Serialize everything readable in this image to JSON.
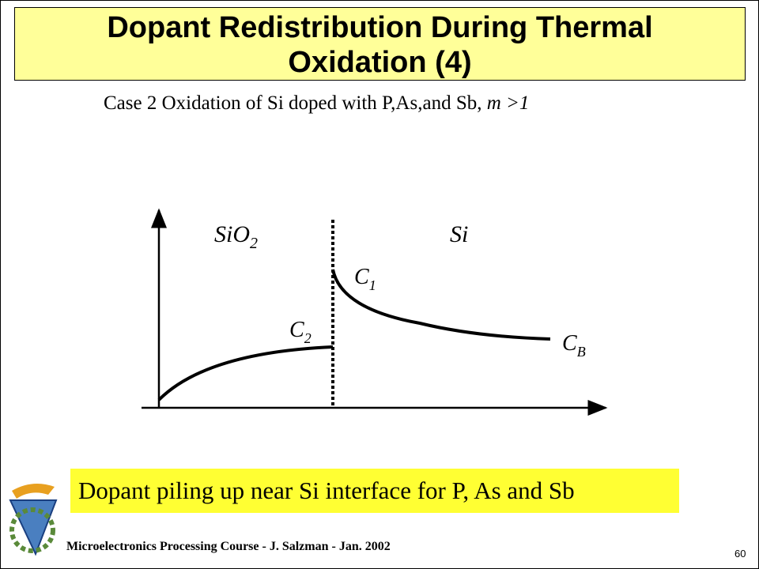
{
  "header": {
    "title_lines": [
      "Dopant Redistribution During Thermal",
      "Oxidation (4)"
    ]
  },
  "subtitle": {
    "text": "Case 2  Oxidation of Si doped with P,As,and Sb,",
    "condition": "m >1"
  },
  "diagram": {
    "regions": [
      {
        "main": "SiO",
        "sub": "2"
      },
      {
        "main": "Si"
      }
    ],
    "labels": [
      {
        "main": "C",
        "sub": "1"
      },
      {
        "main": "C",
        "sub": "2"
      },
      {
        "main": "C",
        "sub": "B"
      }
    ]
  },
  "highlight": "Dopant piling up near Si interface for P, As  and  Sb",
  "footer": {
    "credit": "Microelectronics Processing Course - J. Salzman - Jan. 2002",
    "page": 60
  }
}
